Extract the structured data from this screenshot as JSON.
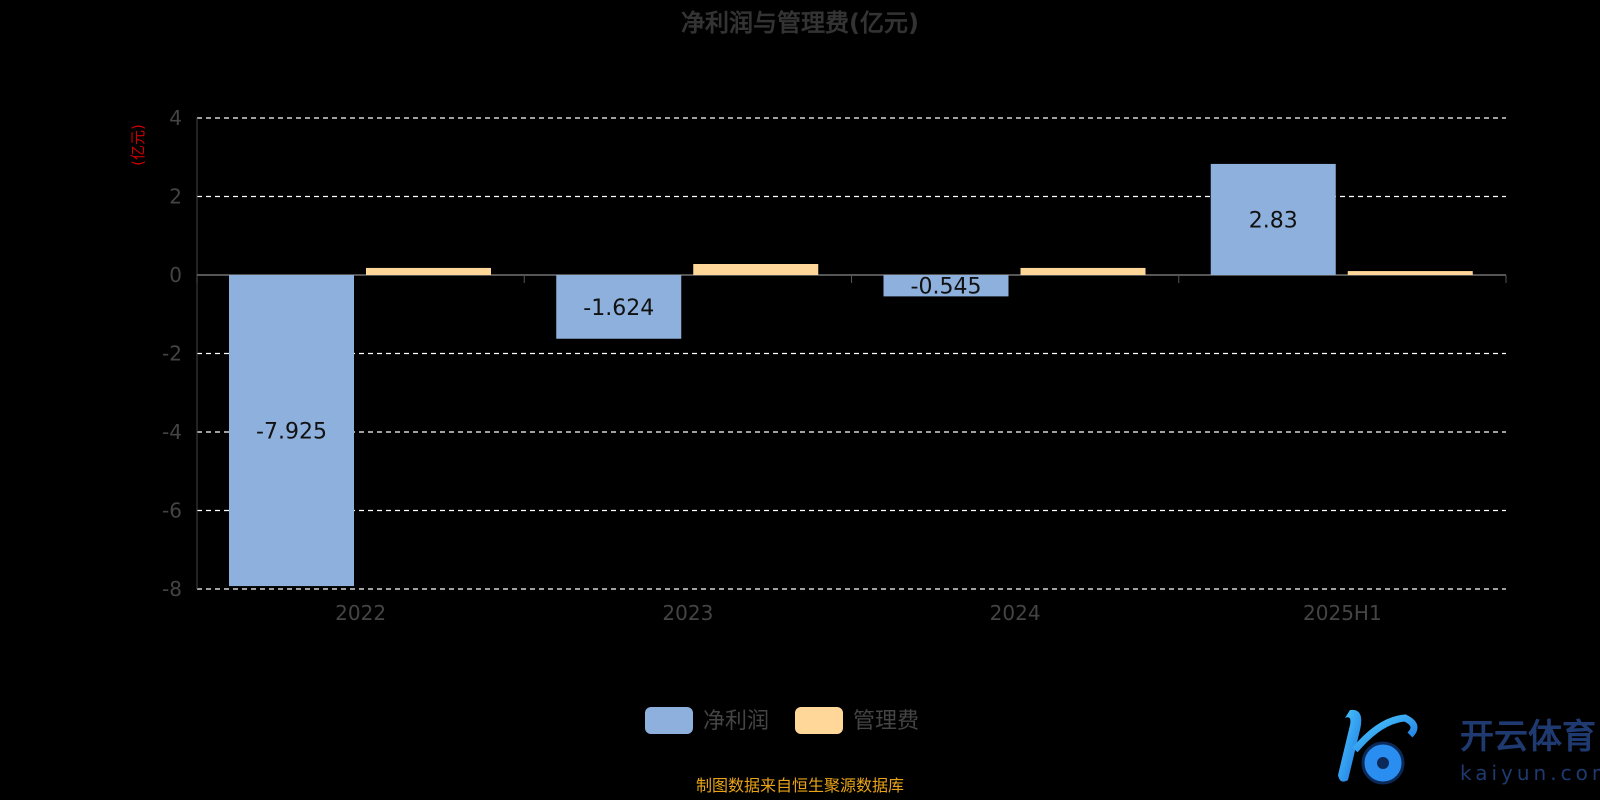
{
  "chart_data": {
    "type": "bar",
    "title": "净利润与管理费(亿元)",
    "ylabel": "(亿元)",
    "xlabel": "",
    "categories": [
      "2022",
      "2023",
      "2024",
      "2025H1"
    ],
    "series": [
      {
        "name": "净利润",
        "values": [
          -7.925,
          -1.624,
          -0.545,
          2.83
        ],
        "labels": [
          "-7.925",
          "-1.624",
          "-0.545",
          "2.83"
        ],
        "color": "#8EB0DD"
      },
      {
        "name": "管理费",
        "values": [
          0.18,
          0.28,
          0.18,
          0.1
        ],
        "color": "#FFD899"
      }
    ],
    "ylim": [
      -8,
      4
    ],
    "yticks": [
      "4",
      "2",
      "0",
      "-2",
      "-4",
      "-6",
      "-8"
    ],
    "grid": true,
    "legend_position": "bottom"
  },
  "source_note": "制图数据来自恒生聚源数据库",
  "watermark": {
    "text": "开云体育",
    "sub": "kaiyun.com"
  }
}
